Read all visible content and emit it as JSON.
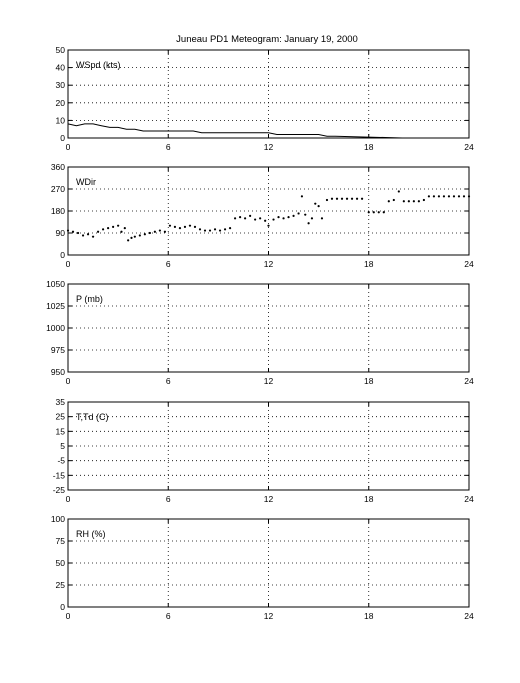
{
  "title": "Juneau PD1 Meteogram:    January 19, 2000",
  "chart_data": [
    {
      "type": "line",
      "label": "WSpd (kts)",
      "x_ticks": [
        "0",
        "6",
        "12",
        "18",
        "24"
      ],
      "xlim": [
        0,
        24
      ],
      "y_ticks": [
        "50",
        "40",
        "30",
        "20",
        "10",
        "0"
      ],
      "ylim": [
        0,
        50
      ],
      "grid": true,
      "series": [
        {
          "x": [
            0,
            0.5,
            1,
            1.5,
            2,
            2.5,
            3,
            3.5,
            4,
            4.5,
            5,
            5.5,
            6,
            6.5,
            7,
            7.5,
            8,
            8.5,
            9,
            9.5,
            10,
            10.5,
            11,
            11.5,
            12,
            12.5,
            13,
            13.5,
            14,
            14.5,
            15,
            15.5,
            16,
            20,
            24
          ],
          "y": [
            8,
            7,
            8,
            8,
            7,
            6,
            6,
            5,
            5,
            4,
            4,
            4,
            4,
            4,
            4,
            4,
            3,
            3,
            3,
            3,
            3,
            3,
            3,
            3,
            3,
            2,
            2,
            2,
            2,
            2,
            2,
            1,
            1,
            0,
            0
          ]
        }
      ]
    },
    {
      "type": "scatter",
      "label": "WDir",
      "x_ticks": [
        "0",
        "6",
        "12",
        "18",
        "24"
      ],
      "xlim": [
        0,
        24
      ],
      "y_ticks": [
        "360",
        "270",
        "180",
        "90",
        "0"
      ],
      "ylim": [
        0,
        360
      ],
      "grid": true,
      "series": [
        {
          "x": [
            0,
            0.3,
            0.6,
            0.9,
            1.2,
            1.5,
            1.8,
            2.1,
            2.4,
            2.7,
            3,
            3.2,
            3.4,
            3.6,
            3.8,
            4,
            4.3,
            4.6,
            4.9,
            5.2,
            5.5,
            5.8,
            6.1,
            6.4,
            6.7,
            7,
            7.3,
            7.6,
            7.9,
            8.2,
            8.5,
            8.8,
            9.1,
            9.4,
            9.7,
            10,
            10.3,
            10.6,
            10.9,
            11.2,
            11.5,
            11.8,
            12,
            12.3,
            12.6,
            12.9,
            13.2,
            13.5,
            13.8,
            14,
            14.2,
            14.4,
            14.6,
            14.8,
            15,
            15.2,
            15.5,
            15.8,
            16.1,
            16.4,
            16.7,
            17,
            17.3,
            17.6,
            18,
            18.3,
            18.6,
            18.9,
            19.2,
            19.5,
            19.8,
            20.1,
            20.4,
            20.7,
            21,
            21.3,
            21.6,
            21.9,
            22.2,
            22.5,
            22.8,
            23.1,
            23.4,
            23.7,
            24
          ],
          "y": [
            100,
            95,
            90,
            80,
            85,
            75,
            95,
            105,
            110,
            115,
            120,
            95,
            110,
            60,
            70,
            75,
            80,
            85,
            90,
            95,
            100,
            95,
            120,
            115,
            110,
            115,
            120,
            115,
            105,
            100,
            100,
            105,
            100,
            105,
            110,
            150,
            155,
            150,
            160,
            145,
            150,
            140,
            120,
            145,
            155,
            150,
            155,
            160,
            170,
            240,
            165,
            130,
            150,
            210,
            200,
            150,
            225,
            230,
            230,
            230,
            230,
            230,
            230,
            230,
            175,
            175,
            175,
            175,
            220,
            225,
            260,
            220,
            220,
            220,
            220,
            225,
            240,
            240,
            240,
            240,
            240,
            240,
            240,
            240,
            240
          ]
        }
      ]
    },
    {
      "type": "line",
      "label": "P (mb)",
      "x_ticks": [
        "0",
        "6",
        "12",
        "18",
        "24"
      ],
      "xlim": [
        0,
        24
      ],
      "y_ticks": [
        "1050",
        "1025",
        "1000",
        "975",
        "950"
      ],
      "ylim": [
        950,
        1050
      ],
      "grid": true,
      "series": []
    },
    {
      "type": "line",
      "label": "T,Td (C)",
      "x_ticks": [
        "0",
        "6",
        "12",
        "18",
        "24"
      ],
      "xlim": [
        0,
        24
      ],
      "y_ticks": [
        "35",
        "25",
        "15",
        "5",
        "-5",
        "-15",
        "-25"
      ],
      "ylim": [
        -25,
        35
      ],
      "grid": true,
      "series": []
    },
    {
      "type": "line",
      "label": "RH (%)",
      "x_ticks": [
        "0",
        "6",
        "12",
        "18",
        "24"
      ],
      "xlim": [
        0,
        24
      ],
      "y_ticks": [
        "100",
        "75",
        "50",
        "25",
        "0"
      ],
      "ylim": [
        0,
        100
      ],
      "grid": true,
      "series": []
    }
  ]
}
